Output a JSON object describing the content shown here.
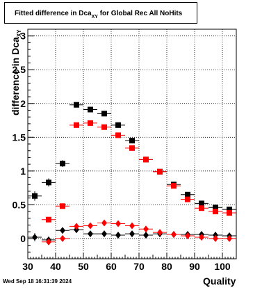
{
  "chart_data": {
    "type": "scatter",
    "title_main": "Fitted difference in Dca",
    "title_sub": "XY",
    "title_rest": "for Global Rec All NoHits",
    "ylabel_main": "difference in Dca",
    "ylabel_sub": "XY",
    "xlabel": "Quality",
    "xlim": [
      30,
      105
    ],
    "ylim": [
      -0.3,
      3.1
    ],
    "x_ticks": [
      30,
      40,
      50,
      60,
      70,
      80,
      90,
      100
    ],
    "y_ticks": [
      0,
      0.5,
      1,
      1.5,
      2,
      2.5,
      3
    ],
    "y_tick_labels": [
      "0",
      "0.5",
      "1",
      "1.5",
      "2",
      "2.5",
      "3"
    ],
    "grid": true,
    "series": [
      {
        "marker": "square",
        "color": "#000000",
        "x": [
          32.5,
          37.5,
          42.5,
          47.5,
          52.5,
          57.5,
          62.5,
          67.5,
          72.5,
          77.5,
          82.5,
          87.5,
          92.5,
          97.5,
          102.5
        ],
        "y": [
          0.63,
          0.83,
          1.11,
          1.98,
          1.91,
          1.85,
          1.68,
          1.45,
          1.17,
          0.99,
          0.8,
          0.65,
          0.52,
          0.46,
          0.43
        ],
        "err": [
          0.07,
          0.06,
          0.05,
          0.02,
          0.02,
          0.02,
          0.02,
          0.02,
          0.02,
          0.02,
          0.02,
          0.02,
          0.02,
          0.02,
          0.02
        ]
      },
      {
        "marker": "square",
        "color": "#ff0000",
        "x": [
          37.5,
          42.5,
          47.5,
          52.5,
          57.5,
          62.5,
          67.5,
          72.5,
          77.5,
          82.5,
          87.5,
          92.5,
          97.5,
          102.5
        ],
        "y": [
          0.28,
          0.48,
          1.68,
          1.71,
          1.65,
          1.53,
          1.34,
          1.17,
          0.99,
          0.78,
          0.58,
          0.45,
          0.4,
          0.38
        ],
        "err": [
          0.03,
          0.03,
          0.02,
          0.02,
          0.02,
          0.02,
          0.02,
          0.02,
          0.02,
          0.02,
          0.02,
          0.02,
          0.02,
          0.02
        ]
      },
      {
        "marker": "diamond",
        "color": "#000000",
        "x": [
          32.5,
          37.5,
          42.5,
          47.5,
          52.5,
          57.5,
          62.5,
          67.5,
          72.5,
          77.5,
          82.5,
          87.5,
          92.5,
          97.5,
          102.5
        ],
        "y": [
          0.02,
          -0.02,
          0.12,
          0.13,
          0.07,
          0.07,
          0.05,
          0.07,
          0.05,
          0.07,
          0.06,
          0.06,
          0.06,
          0.05,
          0.04
        ],
        "err": [
          0.06,
          0.05,
          0.03,
          0.02,
          0.02,
          0.02,
          0.02,
          0.02,
          0.02,
          0.02,
          0.02,
          0.02,
          0.02,
          0.02,
          0.02
        ]
      },
      {
        "marker": "diamond",
        "color": "#ff0000",
        "x": [
          37.5,
          42.5,
          47.5,
          52.5,
          57.5,
          62.5,
          67.5,
          72.5,
          77.5,
          82.5,
          87.5,
          92.5,
          97.5,
          102.5
        ],
        "y": [
          -0.05,
          0.0,
          0.18,
          0.19,
          0.23,
          0.22,
          0.19,
          0.14,
          0.09,
          0.06,
          0.04,
          0.02,
          0.0,
          0.0
        ],
        "err": [
          0.03,
          0.03,
          0.02,
          0.02,
          0.02,
          0.02,
          0.02,
          0.02,
          0.02,
          0.02,
          0.02,
          0.02,
          0.02,
          0.02
        ]
      }
    ]
  },
  "footer": {
    "timestamp": "Wed Sep 18 16:31:39 2024"
  }
}
